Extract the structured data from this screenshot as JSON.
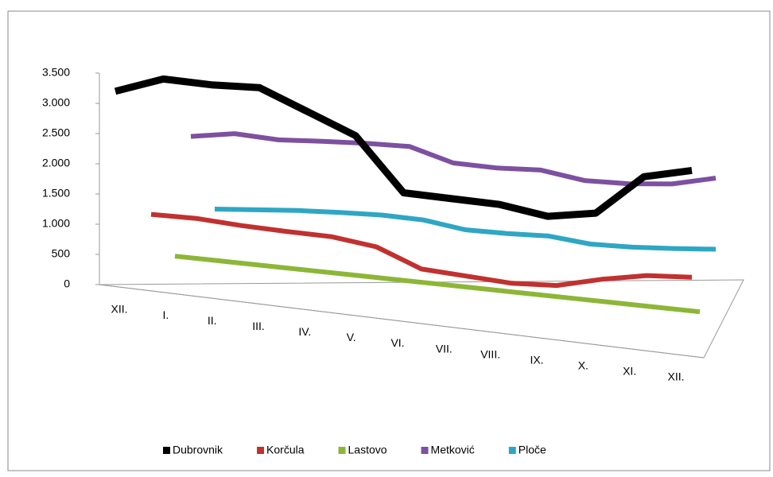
{
  "chart_data": {
    "type": "line3d",
    "categories": [
      "XII.",
      "I.",
      "II.",
      "III.",
      "IV.",
      "V.",
      "VI.",
      "VII.",
      "VIII.",
      "IX.",
      "X.",
      "XI.",
      "XII."
    ],
    "series": [
      {
        "name": "Dubrovnik",
        "color": "#000000",
        "values": [
          3200,
          3400,
          3300,
          3250,
          2850,
          2450,
          1500,
          1400,
          1300,
          1100,
          1150,
          1750,
          1850
        ]
      },
      {
        "name": "Korčula",
        "color": "#c0312f",
        "values": [
          1150,
          1100,
          1000,
          920,
          850,
          700,
          350,
          250,
          150,
          130,
          250,
          330,
          320
        ]
      },
      {
        "name": "Lastovo",
        "color": "#8db637",
        "values": [
          50,
          50,
          50,
          50,
          50,
          50,
          50,
          50,
          50,
          50,
          50,
          50,
          50
        ]
      },
      {
        "name": "Metković",
        "color": "#7d50a0",
        "values": [
          2400,
          2450,
          2350,
          2330,
          2300,
          2250,
          1980,
          1900,
          1870,
          1700,
          1650,
          1650,
          1750
        ]
      },
      {
        "name": "Ploče",
        "color": "#2ea6c4",
        "values": [
          1250,
          1250,
          1250,
          1230,
          1200,
          1130,
          980,
          930,
          900,
          780,
          740,
          730,
          730
        ]
      }
    ],
    "ylim": [
      0,
      3500
    ],
    "yticks": [
      0,
      500,
      {
        "value": 1000,
        "label": "1.000"
      },
      {
        "value": 1500,
        "label": "1.500"
      },
      {
        "value": 2000,
        "label": "2.000"
      },
      {
        "value": 2500,
        "label": "2.500"
      },
      {
        "value": 3000,
        "label": "3.000"
      },
      {
        "value": 3500,
        "label": "3.500"
      }
    ],
    "legend": "bottom"
  }
}
